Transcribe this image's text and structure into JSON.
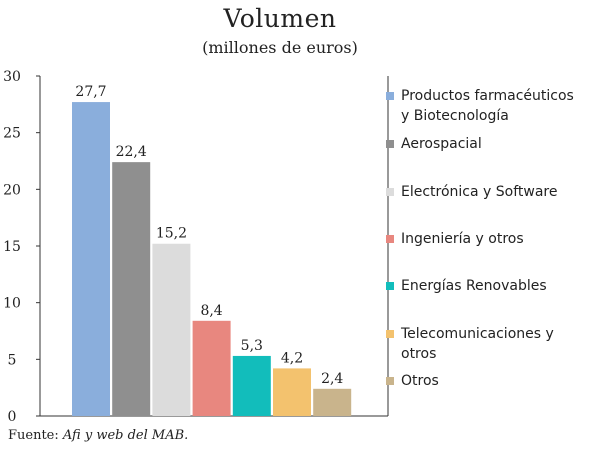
{
  "chart_data": {
    "type": "bar",
    "title": "Volumen",
    "subtitle": "(millones de euros)",
    "categories": [
      "Productos farmacéuticos y Biotecnología",
      "Aerospacial",
      "Electrónica y Software",
      "Ingeniería y otros",
      "Energías Renovables",
      "Telecomunicaciones y otros",
      "Otros"
    ],
    "values": [
      27.7,
      22.4,
      15.2,
      8.4,
      5.3,
      4.2,
      2.4
    ],
    "value_labels": [
      "27,7",
      "22,4",
      "15,2",
      "8,4",
      "5,3",
      "4,2",
      "2,4"
    ],
    "colors": [
      "#8aaedc",
      "#8f8f8f",
      "#dcdcdc",
      "#e8877f",
      "#12bdbb",
      "#f3c26e",
      "#c9b48c"
    ],
    "ylim": [
      0,
      30
    ],
    "yticks": [
      0,
      5,
      10,
      15,
      20,
      25,
      30
    ],
    "ytick_labels": [
      "0",
      "5",
      "10",
      "15",
      "20",
      "25",
      "30"
    ],
    "grid": false,
    "legend_position": "right",
    "legend": [
      [
        "Productos farmacéuticos",
        "y Biotecnología"
      ],
      [
        "Aerospacial"
      ],
      [
        "Electrónica y Software"
      ],
      [
        "Ingeniería y otros"
      ],
      [
        "Energías Renovables"
      ],
      [
        "Telecomunicaciones y",
        "otros"
      ],
      [
        "Otros"
      ]
    ]
  },
  "source": {
    "prefix": "Fuente: ",
    "text": "Afi y web del MAB."
  }
}
